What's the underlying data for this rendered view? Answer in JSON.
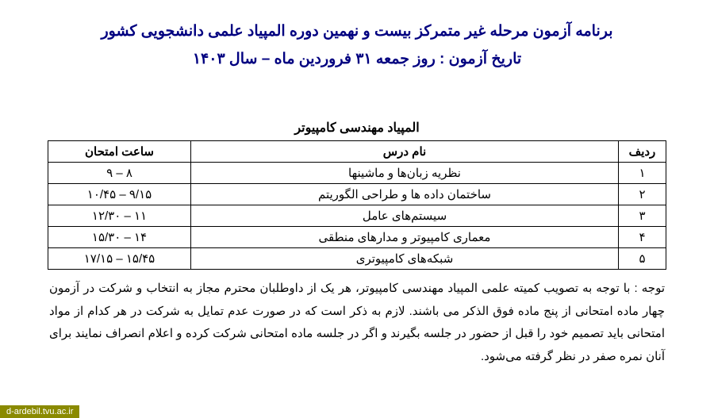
{
  "header": {
    "title1": "برنامه آزمون مرحله غیر متمرکز بیست و نهمین دوره المپیاد علمی دانشجویی کشور",
    "title2": "تاریخ آزمون : روز جمعه ۳۱ فروردین ماه – سال ۱۴۰۳"
  },
  "table": {
    "title": "المپیاد مهندسی کامپیوتر",
    "headers": {
      "row": "ردیف",
      "subject": "نام درس",
      "time": "ساعت امتحان"
    },
    "rows": [
      {
        "num": "۱",
        "subject": "نظریه زبان‌ها و ماشینها",
        "time": "۸ – ۹"
      },
      {
        "num": "۲",
        "subject": "ساختمان داده ها و طراحی الگوریتم",
        "time": "۹/۱۵ – ۱۰/۴۵"
      },
      {
        "num": "۳",
        "subject": "سیستم‌های عامل",
        "time": "۱۱ – ۱۲/۳۰"
      },
      {
        "num": "۴",
        "subject": "معماری کامپیوتر و مدارهای منطقی",
        "time": "۱۴ – ۱۵/۳۰"
      },
      {
        "num": "۵",
        "subject": "شبکه‌های کامپیوتری",
        "time": "۱۵/۴۵ – ۱۷/۱۵"
      }
    ]
  },
  "note": "توجه : با توجه به تصویب کمیته علمی المپیاد مهندسی کامپیوتر، هر یک از داوطلبان محترم مجاز به انتخاب و شرکت در آزمون چهار ماده امتحانی از پنج ماده فوق الذکر می باشند. لازم به ذکر است که در صورت عدم تمایل به شرکت در هر کدام از مواد امتحانی باید تصمیم خود را قبل از حضور در جلسه بگیرند و اگر در جلسه ماده امتحانی شرکت کرده و اعلام انصراف نمایند برای آنان نمره صفر در نظر گرفته می‌شود.",
  "watermark": "d-ardebil.tvu.ac.ir"
}
